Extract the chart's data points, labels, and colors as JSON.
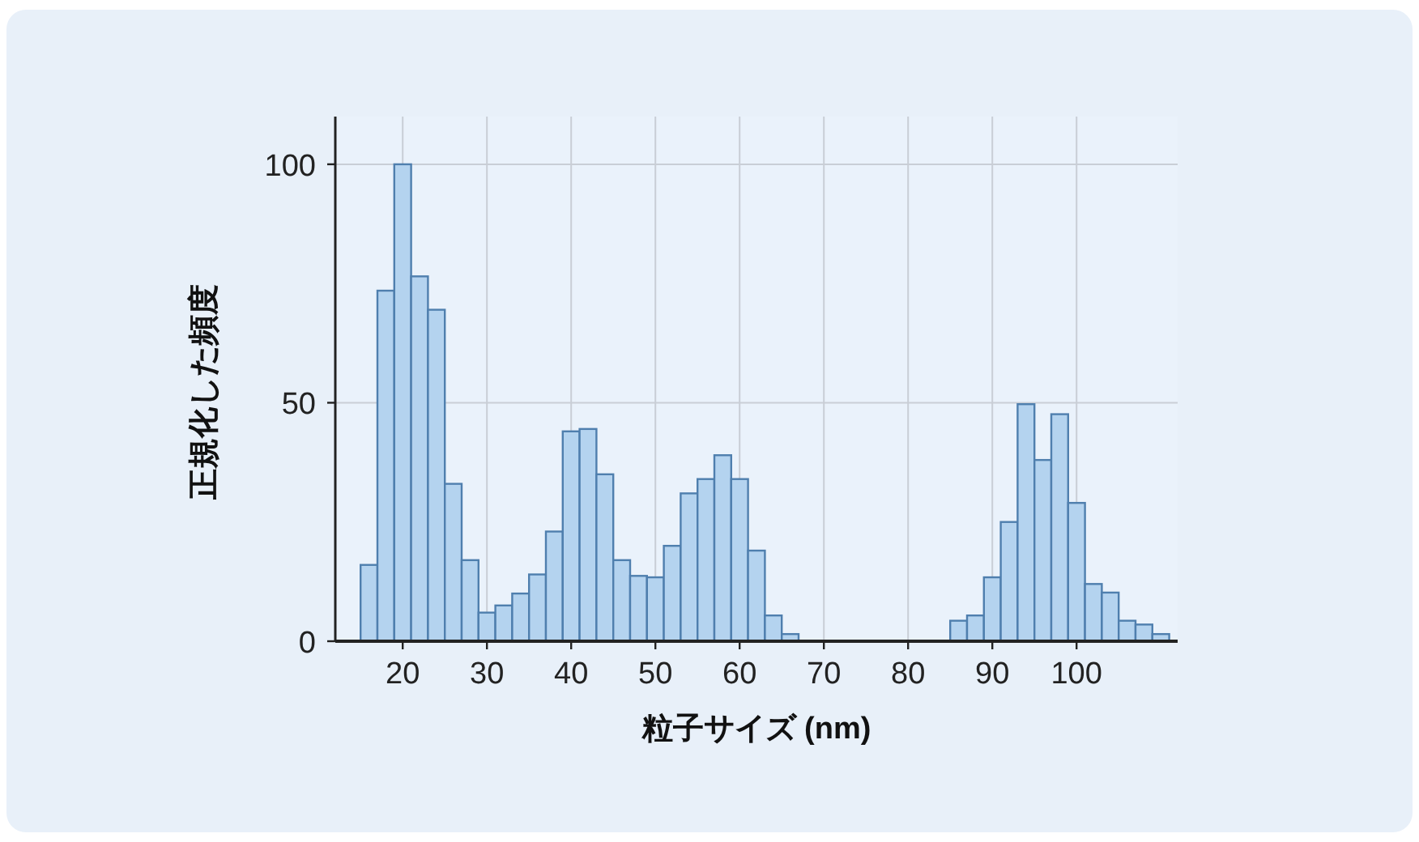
{
  "chart_data": {
    "type": "histogram",
    "xlabel": "粒子サイズ (nm)",
    "ylabel": "正規化した頻度",
    "bins": [
      15,
      17,
      19,
      21,
      23,
      25,
      27,
      29,
      31,
      33,
      35,
      37,
      39,
      41,
      43,
      45,
      47,
      49,
      51,
      53,
      55,
      57,
      59,
      61,
      63,
      65,
      67,
      69,
      71,
      73,
      75,
      77,
      79,
      81,
      83,
      85,
      87,
      89,
      91,
      93,
      95,
      97,
      99,
      101,
      103,
      105,
      107,
      109,
      111
    ],
    "values": [
      16,
      73.5,
      100,
      76.5,
      69.5,
      33,
      17,
      6,
      7.5,
      10,
      14,
      23,
      44,
      44.5,
      35,
      17,
      13.7,
      13.4,
      20,
      31,
      34,
      39,
      34,
      19,
      5.4,
      1.5,
      0,
      0,
      0,
      0,
      0,
      0,
      0,
      0,
      0,
      4.3,
      5.4,
      13.4,
      25,
      49.7,
      38,
      47.6,
      29,
      12,
      10.2,
      4.3,
      3.5,
      1.5
    ],
    "color": "#b4d3ef",
    "xlim": [
      12,
      112
    ],
    "ylim": [
      0,
      110
    ],
    "xticks": [
      20,
      30,
      40,
      50,
      60,
      70,
      80,
      90,
      100
    ],
    "yticks": [
      0,
      50,
      100
    ],
    "grid": true
  }
}
